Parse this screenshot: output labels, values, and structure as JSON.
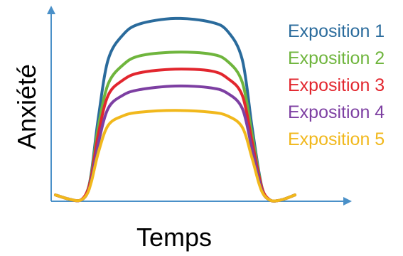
{
  "chart_data": {
    "type": "line",
    "xlabel": "Temps",
    "ylabel": "Anxiété",
    "x": [
      0,
      5,
      10,
      13,
      15,
      18,
      22,
      28,
      35,
      50,
      65,
      72,
      78,
      82,
      85,
      87,
      90,
      93,
      96,
      100
    ],
    "series": [
      {
        "name": "Exposition 1",
        "color": "#2a6b9c",
        "values": [
          3,
          1,
          0,
          4,
          15,
          45,
          75,
          88,
          94,
          97,
          95,
          90,
          75,
          40,
          15,
          4,
          0,
          0,
          1,
          3
        ]
      },
      {
        "name": "Exposition 2",
        "color": "#6fb53d",
        "values": [
          3,
          1,
          0,
          4,
          14,
          40,
          62,
          72,
          77,
          79,
          78,
          74,
          63,
          36,
          14,
          4,
          0,
          0,
          1,
          3
        ]
      },
      {
        "name": "Exposition 3",
        "color": "#e2262e",
        "values": [
          3,
          1,
          0,
          4,
          13,
          36,
          56,
          64,
          68,
          70,
          69,
          65,
          56,
          32,
          13,
          4,
          0,
          0,
          1,
          3
        ]
      },
      {
        "name": "Exposition 4",
        "color": "#7d3fa2",
        "values": [
          3,
          1,
          0,
          3,
          11,
          31,
          49,
          56,
          59,
          61,
          60,
          57,
          49,
          28,
          11,
          3,
          0,
          0,
          1,
          3
        ]
      },
      {
        "name": "Exposition 5",
        "color": "#f1b81c",
        "values": [
          3,
          1,
          0,
          3,
          10,
          26,
          40,
          45,
          47,
          48,
          47,
          45,
          39,
          23,
          9,
          3,
          0,
          0,
          1,
          3
        ]
      }
    ],
    "xlim": [
      0,
      100
    ],
    "ylim": [
      0,
      100
    ],
    "grid": false,
    "legend": "right"
  }
}
